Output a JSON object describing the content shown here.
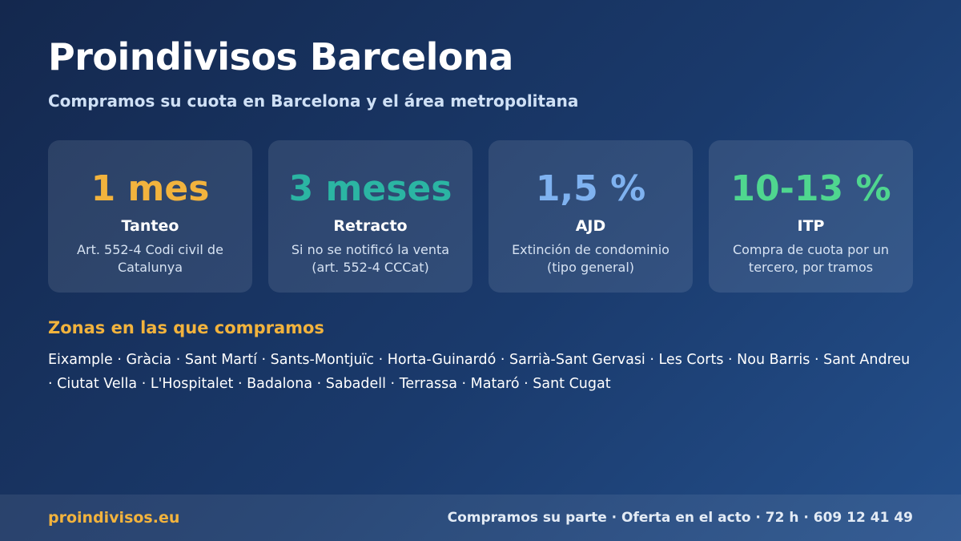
{
  "header": {
    "title": "Proindivisos Barcelona",
    "subtitle": "Compramos su cuota en Barcelona y el área metropolitana"
  },
  "cards": [
    {
      "value": "1 mes",
      "label": "Tanteo",
      "description": "Art. 552-4 Codi civil de Catalunya",
      "color": "#f2b33d"
    },
    {
      "value": "3 meses",
      "label": "Retracto",
      "description": "Si no se notificó la venta (art. 552-4 CCCat)",
      "color": "#2bb5a3"
    },
    {
      "value": "1,5 %",
      "label": "AJD",
      "description": "Extinción de condominio (tipo general)",
      "color": "#7fb2f0"
    },
    {
      "value": "10-13 %",
      "label": "ITP",
      "description": "Compra de cuota por un tercero, por tramos",
      "color": "#4fd68f"
    }
  ],
  "zones": {
    "title": "Zonas en las que compramos",
    "list": "Eixample · Gràcia · Sant Martí · Sants-Montjuïc · Horta-Guinardó · Sarrià-Sant Gervasi · Les Corts · Nou Barris · Sant Andreu · Ciutat Vella · L'Hospitalet · Badalona · Sabadell · Terrassa · Mataró · Sant Cugat"
  },
  "footer": {
    "domain": "proindivisos.eu",
    "contact": "Compramos su parte · Oferta en el acto · 72 h · 609 12 41 49"
  }
}
